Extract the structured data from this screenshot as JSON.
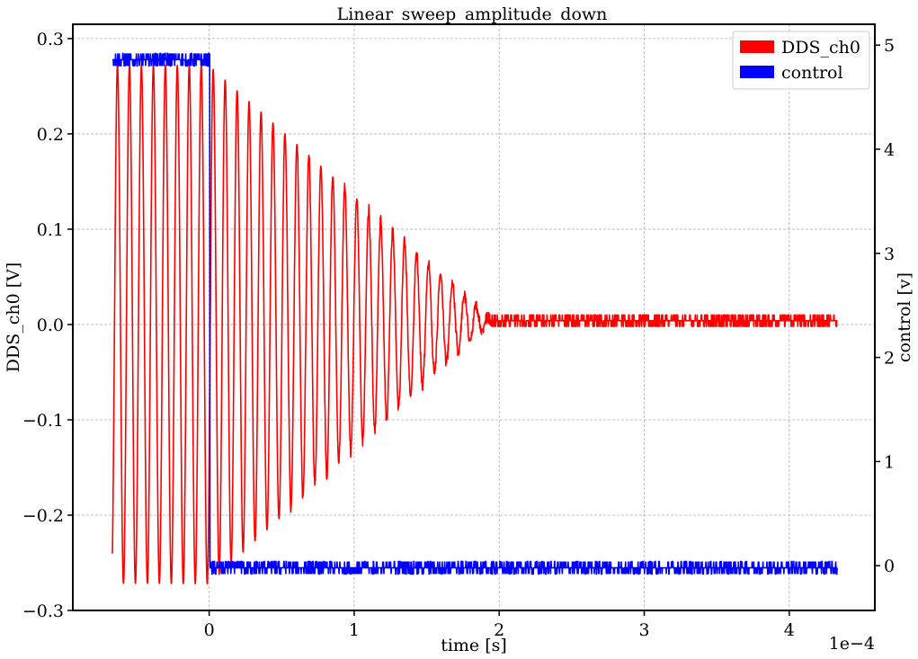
{
  "chart_data": {
    "type": "line",
    "title": "Linear_sweep_amplitude_down",
    "xlabel": "time [s]",
    "x_offset_label": "1e−4",
    "xlim": [
      -9.4e-05,
      0.000459
    ],
    "x_ticks": [
      {
        "value": 0.0,
        "label": "0"
      },
      {
        "value": 0.0001,
        "label": "1"
      },
      {
        "value": 0.0002,
        "label": "2"
      },
      {
        "value": 0.0003,
        "label": "3"
      },
      {
        "value": 0.0004,
        "label": "4"
      }
    ],
    "y_left": {
      "label": "DDS_ch0 [V]",
      "lim": [
        -0.3,
        0.315
      ],
      "ticks": [
        {
          "value": -0.3,
          "label": "−0.3"
        },
        {
          "value": -0.2,
          "label": "−0.2"
        },
        {
          "value": -0.1,
          "label": "−0.1"
        },
        {
          "value": 0.0,
          "label": "0.0"
        },
        {
          "value": 0.1,
          "label": "0.1"
        },
        {
          "value": 0.2,
          "label": "0.2"
        },
        {
          "value": 0.3,
          "label": "0.3"
        }
      ]
    },
    "y_right": {
      "label": "control [v]",
      "lim": [
        -0.43,
        5.2
      ],
      "ticks": [
        {
          "value": 0,
          "label": "0"
        },
        {
          "value": 1,
          "label": "1"
        },
        {
          "value": 2,
          "label": "2"
        },
        {
          "value": 3,
          "label": "3"
        },
        {
          "value": 4,
          "label": "4"
        },
        {
          "value": 5,
          "label": "5"
        }
      ]
    },
    "grid": true,
    "legend": {
      "placement": "top-right"
    },
    "series": [
      {
        "name": "DDS_ch0",
        "axis": "left",
        "color": "#ff0000",
        "x_start": -6.67e-05,
        "x_end": 0.000433,
        "sweep_start": 0.0,
        "sweep_end": 0.000195,
        "amplitude_initial": 0.272,
        "period": 8.25e-06,
        "settled_level": 0.004,
        "noise": 0.006
      },
      {
        "name": "control",
        "axis": "right",
        "color": "#0000ff",
        "x_start": -6.67e-05,
        "x_end": 0.000433,
        "switch_at": 5e-07,
        "high_level": 4.86,
        "low_level": -0.02,
        "noise": 0.06
      }
    ]
  }
}
